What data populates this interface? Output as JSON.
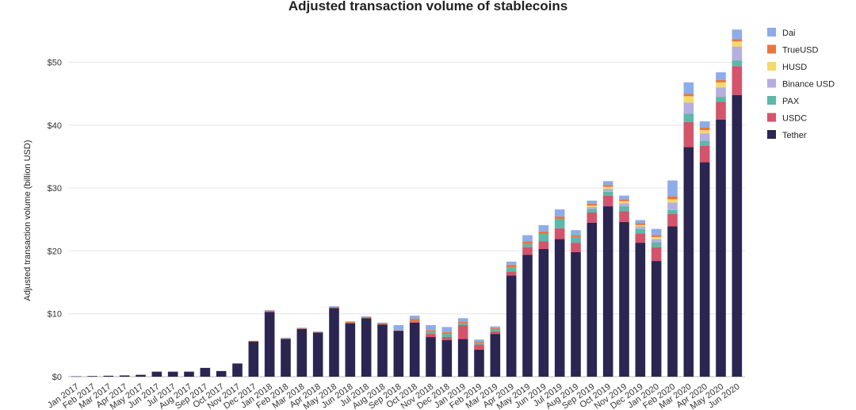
{
  "chart_data": {
    "type": "bar",
    "stacked": true,
    "title": "Adjusted transaction volume of stablecoins",
    "xlabel": "",
    "ylabel": "Adjusted transaction volume (billion USD)",
    "ylim": [
      0,
      55
    ],
    "yticks": [
      0,
      10,
      20,
      30,
      40,
      50
    ],
    "ytick_labels": [
      "$0",
      "$10",
      "$20",
      "$30",
      "$40",
      "$50"
    ],
    "grid": true,
    "legend_position": "top-right",
    "categories": [
      "Jan 2017",
      "Feb 2017",
      "Mar 2017",
      "Apr 2017",
      "May 2017",
      "Jun 2017",
      "Jul 2017",
      "Aug 2017",
      "Sep 2017",
      "Oct 2017",
      "Nov 2017",
      "Dec 2017",
      "Jan 2018",
      "Feb 2018",
      "Mar 2018",
      "Apr 2018",
      "May 2018",
      "Jun 2018",
      "Jul 2018",
      "Aug 2018",
      "Sep 2018",
      "Oct 2018",
      "Nov 2018",
      "Dec 2018",
      "Jan 2019",
      "Feb 2019",
      "Mar 2019",
      "Apr 2019",
      "May 2019",
      "Jun 2019",
      "Jul 2019",
      "Aug 2019",
      "Sep 2019",
      "Oct 2019",
      "Nov 2019",
      "Dec 2019",
      "Jan 2020",
      "Feb 2020",
      "Mar 2020",
      "Apr 2020",
      "May 2020",
      "Jun 2020"
    ],
    "series": [
      {
        "name": "Tether",
        "color": "#2b2552",
        "values": [
          0.05,
          0.1,
          0.15,
          0.2,
          0.3,
          0.8,
          0.8,
          0.8,
          1.4,
          0.9,
          2.1,
          5.6,
          10.3,
          6.0,
          7.6,
          7.0,
          10.9,
          8.5,
          9.3,
          8.3,
          7.3,
          8.6,
          6.3,
          5.8,
          6.0,
          4.3,
          6.8,
          16.1,
          19.4,
          20.3,
          21.9,
          19.8,
          24.5,
          27.1,
          24.6,
          21.3,
          18.4,
          23.9,
          36.5,
          34.1,
          40.9,
          44.8
        ]
      },
      {
        "name": "USDC",
        "color": "#d4546b",
        "values": [
          0,
          0,
          0,
          0,
          0,
          0,
          0,
          0,
          0,
          0,
          0,
          0,
          0,
          0,
          0,
          0,
          0,
          0,
          0,
          0,
          0,
          0.2,
          0.5,
          0.5,
          2.2,
          0.8,
          0.4,
          0.6,
          1.2,
          1.2,
          1.7,
          1.5,
          1.6,
          1.7,
          1.7,
          1.5,
          2.2,
          2.0,
          4.0,
          2.6,
          2.8,
          4.6
        ]
      },
      {
        "name": "PAX",
        "color": "#5cb8a8",
        "values": [
          0,
          0,
          0,
          0,
          0,
          0,
          0,
          0,
          0,
          0,
          0,
          0,
          0,
          0,
          0,
          0,
          0,
          0,
          0,
          0,
          0,
          0,
          0.3,
          0.5,
          0.3,
          0.3,
          0.3,
          0.6,
          0.5,
          1.2,
          1.5,
          0.9,
          0.6,
          0.6,
          0.8,
          0.7,
          0.8,
          0.6,
          1.3,
          0.8,
          0.8,
          0.9
        ]
      },
      {
        "name": "Binance USD",
        "color": "#b5aee0",
        "values": [
          0,
          0,
          0,
          0,
          0,
          0,
          0,
          0,
          0,
          0,
          0,
          0,
          0,
          0,
          0,
          0,
          0,
          0,
          0,
          0,
          0,
          0,
          0,
          0,
          0,
          0,
          0,
          0,
          0,
          0,
          0,
          0,
          0.3,
          0.5,
          0.5,
          0.4,
          0.5,
          1.2,
          1.8,
          1.2,
          1.5,
          2.2
        ]
      },
      {
        "name": "HUSD",
        "color": "#f5d96b",
        "values": [
          0,
          0,
          0,
          0,
          0,
          0,
          0,
          0,
          0,
          0,
          0,
          0,
          0,
          0,
          0,
          0,
          0,
          0,
          0,
          0,
          0,
          0,
          0,
          0,
          0,
          0,
          0,
          0,
          0,
          0,
          0,
          0,
          0.2,
          0.3,
          0.3,
          0.2,
          0.3,
          0.5,
          1.0,
          0.5,
          0.8,
          0.8
        ]
      },
      {
        "name": "TrueUSD",
        "color": "#e8773f",
        "values": [
          0,
          0,
          0,
          0,
          0,
          0,
          0,
          0,
          0,
          0,
          0,
          0.1,
          0.2,
          0.1,
          0.1,
          0.1,
          0.2,
          0.2,
          0.2,
          0.2,
          0.1,
          0.4,
          0.3,
          0.3,
          0.3,
          0.2,
          0.2,
          0.5,
          0.4,
          0.4,
          0.4,
          0.3,
          0.3,
          0.3,
          0.3,
          0.3,
          0.3,
          0.5,
          0.4,
          0.4,
          0.4,
          0.4
        ]
      },
      {
        "name": "Dai",
        "color": "#8cacea",
        "values": [
          0,
          0,
          0,
          0,
          0,
          0,
          0,
          0,
          0,
          0,
          0,
          0,
          0.1,
          0.1,
          0.1,
          0.1,
          0.1,
          0.1,
          0.1,
          0.1,
          0.8,
          0.5,
          0.8,
          0.8,
          0.5,
          0.3,
          0.3,
          0.5,
          1.0,
          1.0,
          1.1,
          0.8,
          0.5,
          0.6,
          0.6,
          0.5,
          1.0,
          2.5,
          1.8,
          1.0,
          1.2,
          1.5
        ]
      }
    ]
  }
}
